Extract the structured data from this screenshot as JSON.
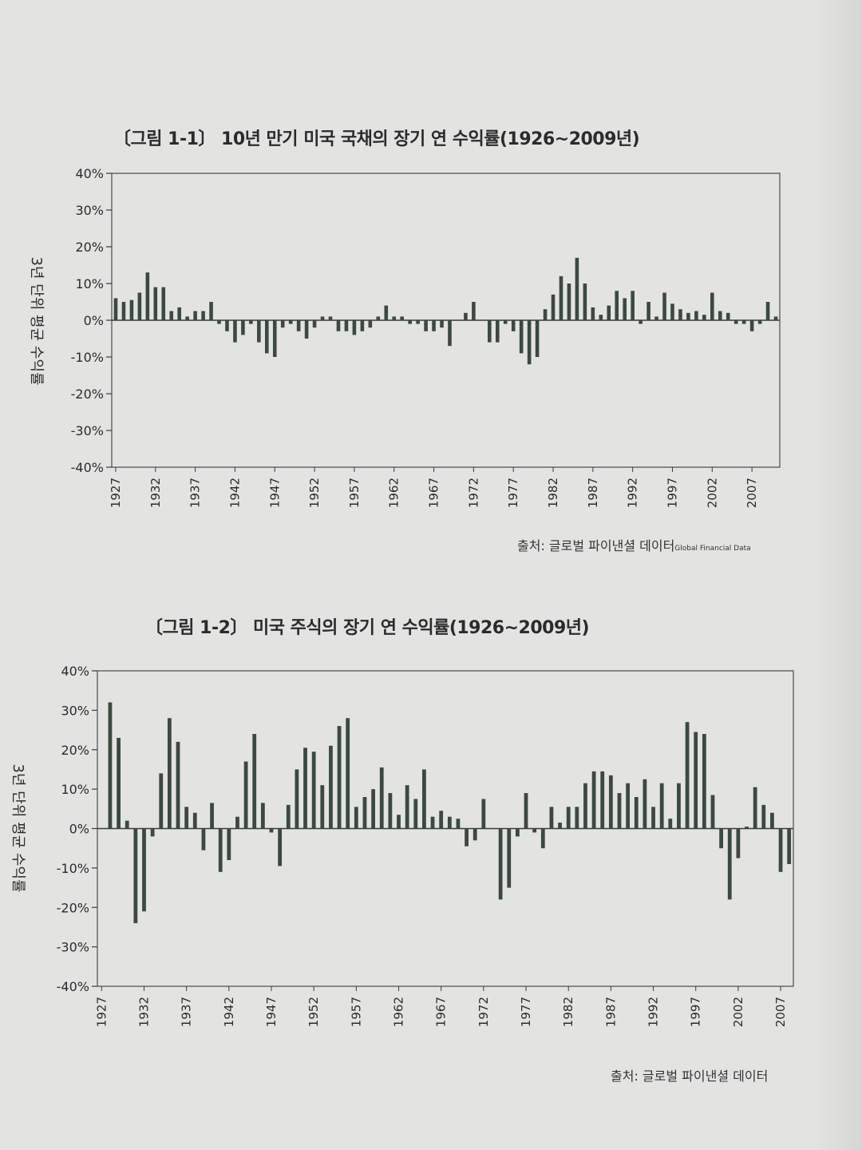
{
  "chart_data": [
    {
      "type": "bar",
      "title": "〔그림 1-1〕 10년 만기 미국 국채의 장기 연 수익률(1926~2009년)",
      "ylabel": "3년 단위 평균 수익률",
      "ylim": [
        -40,
        40
      ],
      "yticks": [
        "40%",
        "30%",
        "20%",
        "10%",
        "0%",
        "-10%",
        "-20%",
        "-30%",
        "-40%"
      ],
      "xticks": [
        "1927",
        "1932",
        "1937",
        "1942",
        "1947",
        "1952",
        "1957",
        "1962",
        "1967",
        "1972",
        "1977",
        "1982",
        "1987",
        "1992",
        "1997",
        "2002",
        "2007"
      ],
      "x_start": 1927,
      "series": [
        {
          "values": [
            6,
            5,
            5.5,
            7.5,
            13,
            9,
            9,
            2.5,
            3.5,
            1,
            2.5,
            2.5,
            5,
            -1,
            -3,
            -6,
            -4,
            -1,
            -6,
            -9,
            -10,
            -2,
            -1,
            -3,
            -5,
            -2,
            1,
            1,
            -3,
            -3,
            -4,
            -3,
            -2,
            1,
            4,
            1,
            1,
            -1,
            -1,
            -3,
            -3,
            -2,
            -7,
            0,
            2,
            5,
            0,
            -6,
            -6,
            -1,
            -3,
            -9,
            -12,
            -10,
            3,
            7,
            12,
            10,
            17,
            10,
            3.5,
            1.5,
            4,
            8,
            6,
            8,
            -1,
            5,
            1,
            7.5,
            4.5,
            3,
            2,
            2.5,
            1.5,
            7.5,
            2.5,
            2,
            -1,
            -1,
            -3,
            -1,
            5,
            1
          ]
        }
      ],
      "source": "출처: 글로벌 파이낸셜 데이터",
      "source_en": "Global Financial Data"
    },
    {
      "type": "bar",
      "title": "〔그림 1-2〕 미국 주식의 장기 연 수익률(1926~2009년)",
      "ylabel": "3년 단위 평균 수익률",
      "ylim": [
        -40,
        40
      ],
      "yticks": [
        "40%",
        "30%",
        "20%",
        "10%",
        "0%",
        "-10%",
        "-20%",
        "-30%",
        "-40%"
      ],
      "xticks": [
        "1927",
        "1932",
        "1937",
        "1942",
        "1947",
        "1952",
        "1957",
        "1962",
        "1967",
        "1972",
        "1977",
        "1982",
        "1987",
        "1992",
        "1997",
        "2002",
        "2007"
      ],
      "x_start": 1927,
      "series": [
        {
          "values": [
            0,
            32,
            23,
            2,
            -24,
            -21,
            -2,
            14,
            28,
            22,
            5.5,
            4,
            -5.5,
            6.5,
            -11,
            -8,
            3,
            17,
            24,
            6.5,
            -1,
            -9.5,
            6,
            15,
            20.5,
            19.5,
            11,
            21,
            26,
            28,
            5.5,
            8,
            10,
            15.5,
            9,
            3.5,
            11,
            7.5,
            15,
            3,
            4.5,
            3,
            2.5,
            -4.5,
            -3,
            7.5,
            0,
            -18,
            -15,
            -2,
            9,
            -1,
            -5,
            5.5,
            1.5,
            5.5,
            5.5,
            11.5,
            14.5,
            14.5,
            13.5,
            9,
            11.5,
            8,
            12.5,
            5.5,
            11.5,
            2.5,
            11.5,
            27,
            24.5,
            24,
            8.5,
            -5,
            -18,
            -7.5,
            0.5,
            10.5,
            6,
            4,
            -11,
            -9
          ]
        }
      ],
      "source": "출처: 글로벌 파이낸셜 데이터"
    }
  ]
}
